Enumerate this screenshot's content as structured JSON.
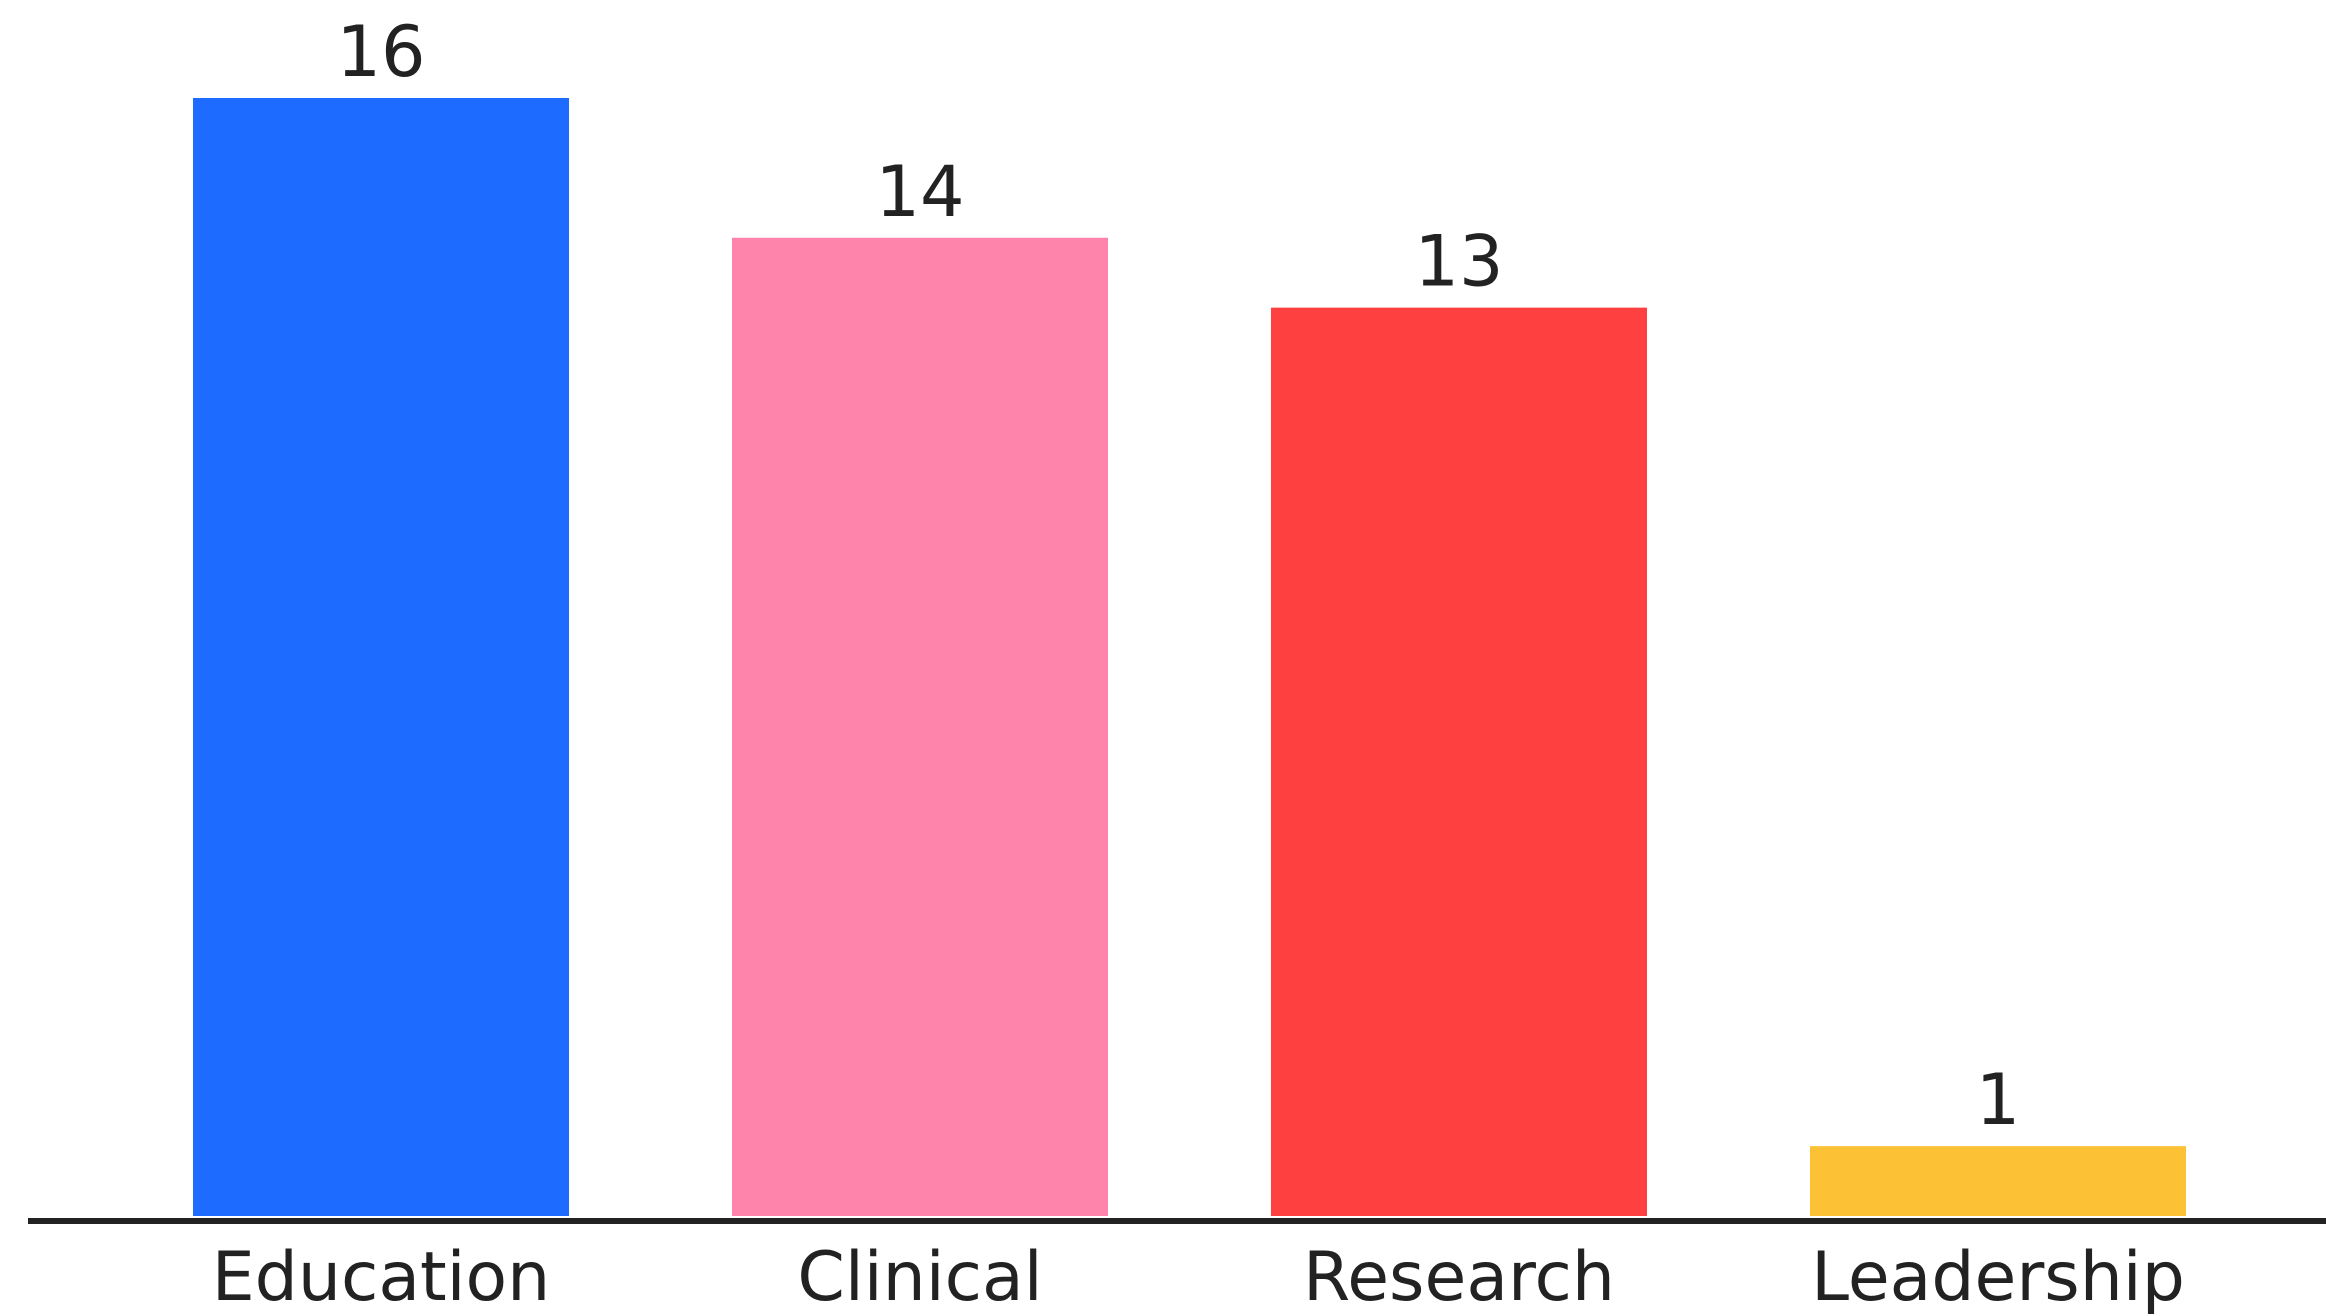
{
  "chart_data": {
    "type": "bar",
    "title": "",
    "xlabel": "",
    "ylabel": "",
    "categories": [
      "Education",
      "Clinical",
      "Research",
      "Leadership"
    ],
    "values": [
      16,
      14,
      13,
      1
    ],
    "colors": [
      "#1e6bff",
      "#ff84ab",
      "#ff4040",
      "#fdc136"
    ],
    "axis_color": "#222222",
    "ylim": [
      0,
      16
    ],
    "grid": false,
    "legend": "none",
    "show_data_labels": true
  }
}
